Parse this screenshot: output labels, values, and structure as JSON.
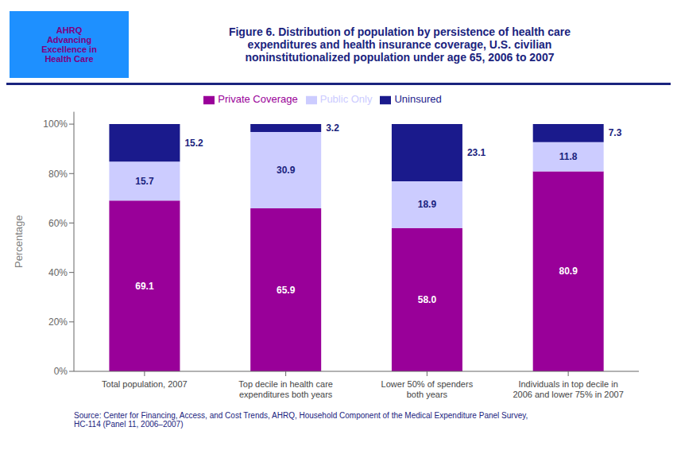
{
  "chart_data": {
    "type": "bar",
    "stacked": true,
    "title": "Figure 6. Distribution of population by persistence of health care\nexpenditures and health insurance coverage, U.S. civilian\nnoninstitutionalized population under age 65, 2006 to 2007",
    "annotations": [
      "AHRQ\nAdvancing\nExcellence in\nHealth Care",
      "Source: Center for Financing, Access, and Cost Trends, AHRQ, Household Component of the Medical Expenditure Panel Survey,\nHC-114 (Panel 11, 2006–2007)"
    ],
    "y_label": "Percentage",
    "categories": [
      "Total population, 2007",
      "Top decile in health care\nexpenditures both years",
      "Lower 50% of spenders\nboth years",
      "Individuals in top decile in\n2006 and lower 75% in 2007"
    ],
    "series": [
      {
        "name": "Private Coverage",
        "color": "#990099",
        "values": [
          69.1,
          65.9,
          58.0,
          80.9
        ],
        "value_labels": [
          "69.1",
          "65.9",
          "58.0",
          "80.9"
        ]
      },
      {
        "name": "Public Only",
        "color": "#ccccff",
        "values": [
          15.7,
          30.9,
          18.9,
          11.8
        ],
        "value_labels": [
          "15.7",
          "30.9",
          "18.9",
          "11.8"
        ]
      },
      {
        "name": "Uninsured",
        "color": "#1a1a8c",
        "values": [
          15.2,
          3.2,
          23.1,
          7.3
        ],
        "value_labels": [
          "15.2",
          "3.2",
          "23.1",
          "7.3"
        ]
      }
    ],
    "ylim": [
      0,
      105
    ],
    "yticks": [
      {
        "value": 0,
        "label": "0%"
      },
      {
        "value": 20,
        "label": "20%"
      },
      {
        "value": 40,
        "label": "40%"
      },
      {
        "value": 60,
        "label": "60%"
      },
      {
        "value": 80,
        "label": "80%"
      },
      {
        "value": 100,
        "label": "100%"
      }
    ],
    "grid": false,
    "legend": "top",
    "data_labels": true
  }
}
